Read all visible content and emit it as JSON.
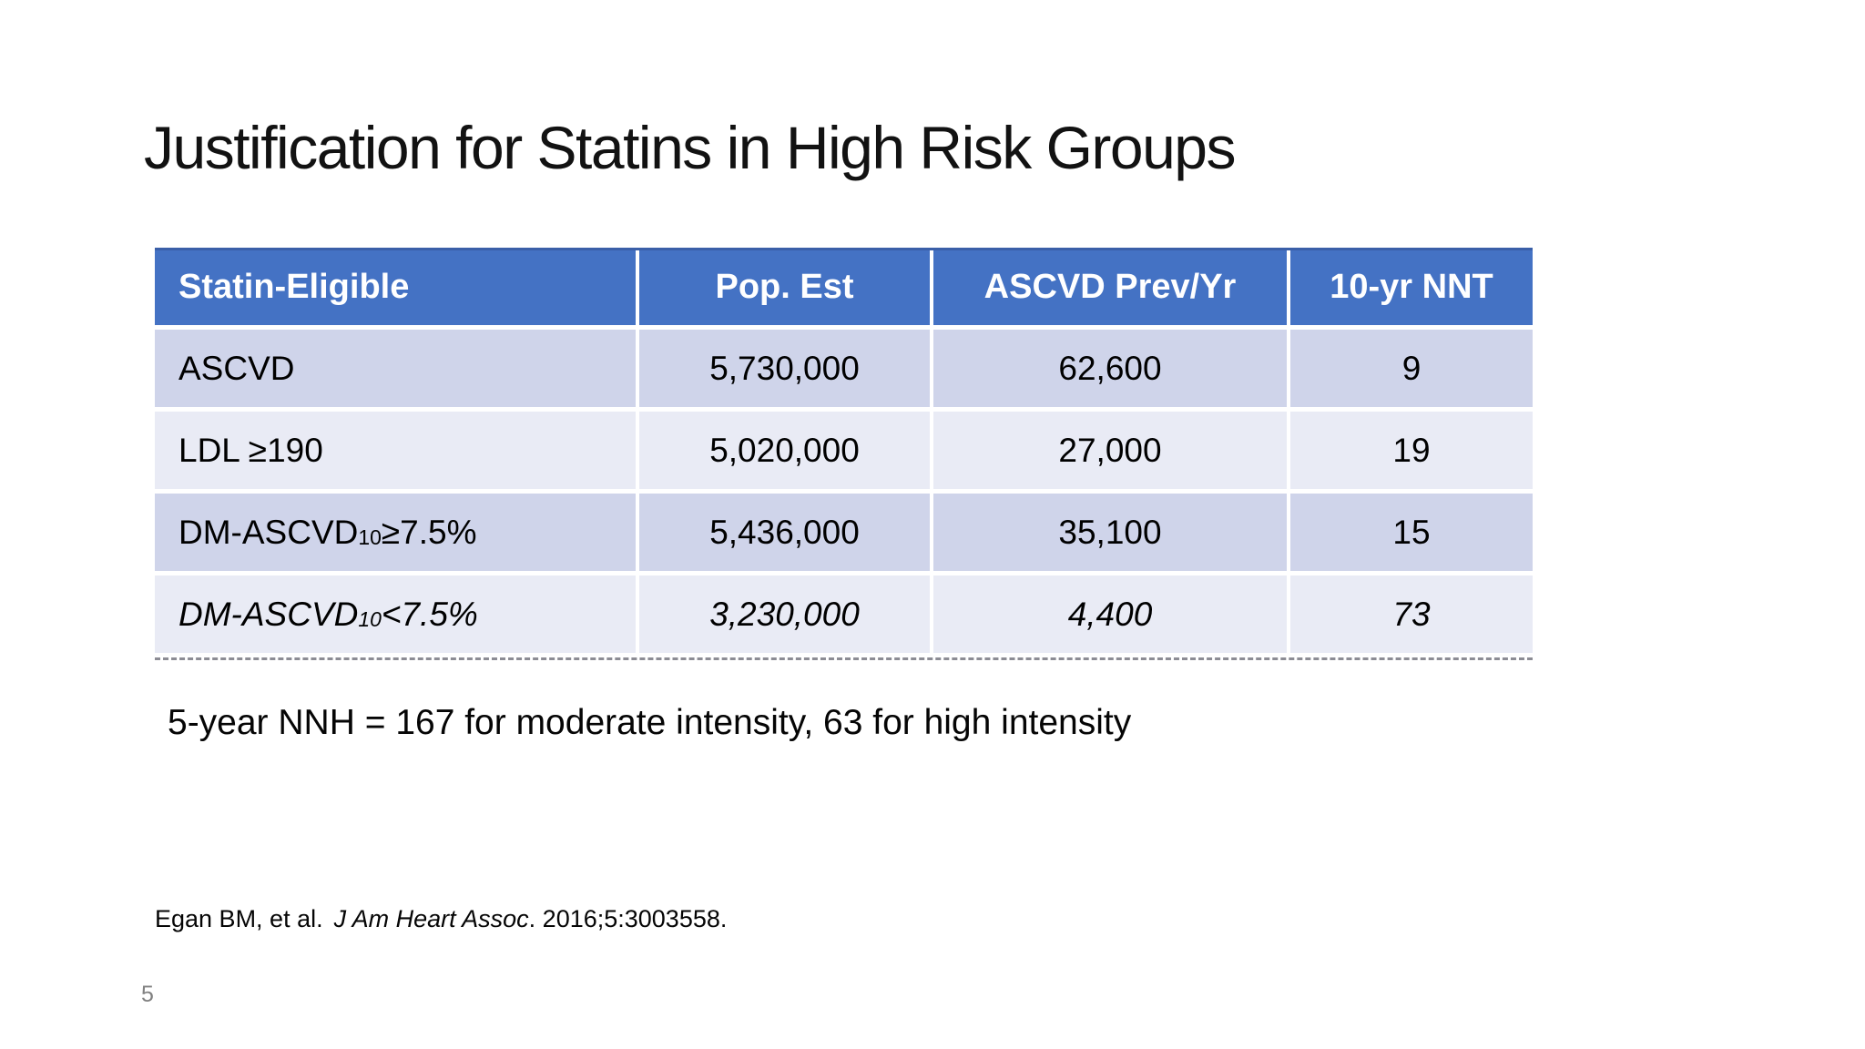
{
  "slide": {
    "title": "Justification for Statins in High Risk Groups",
    "nnh_note": "5-year NNH = 167 for moderate intensity, 63 for high intensity",
    "citation": {
      "authors": "Egan BM, et al.",
      "journal_italic": "J Am Heart Assoc",
      "volume_info": ". 2016;5:3003558."
    },
    "page_number": "5"
  },
  "table": {
    "columns": [
      "Statin-Eligible",
      "Pop. Est",
      "ASCVD Prev/Yr",
      "10-yr NNT"
    ],
    "rows": [
      {
        "label": "ASCVD",
        "label_sub": "",
        "label_suffix": "",
        "pop_est": "5,730,000",
        "ascvd_prev_yr": "62,600",
        "nnt_10yr": "9",
        "italic": false
      },
      {
        "label": "LDL ≥190",
        "label_sub": "",
        "label_suffix": "",
        "pop_est": "5,020,000",
        "ascvd_prev_yr": "27,000",
        "nnt_10yr": "19",
        "italic": false
      },
      {
        "label": "DM-ASCVD",
        "label_sub": "10",
        "label_suffix": " ≥7.5%",
        "pop_est": "5,436,000",
        "ascvd_prev_yr": "35,100",
        "nnt_10yr": "15",
        "italic": false
      },
      {
        "label": "DM-ASCVD",
        "label_sub": "10",
        "label_suffix": " <7.5%",
        "pop_est": "3,230,000",
        "ascvd_prev_yr": "4,400",
        "nnt_10yr": "73",
        "italic": true
      }
    ]
  },
  "colors": {
    "header_bg": "#4472C4",
    "header_top_border": "#3A5FA8",
    "header_text": "#FFFFFF",
    "row_band_dark": "#CFD4EA",
    "row_band_light": "#E9EBF5",
    "body_text": "#000000",
    "page_number_gray": "#808080",
    "bottom_dash": "#8C8C94"
  }
}
